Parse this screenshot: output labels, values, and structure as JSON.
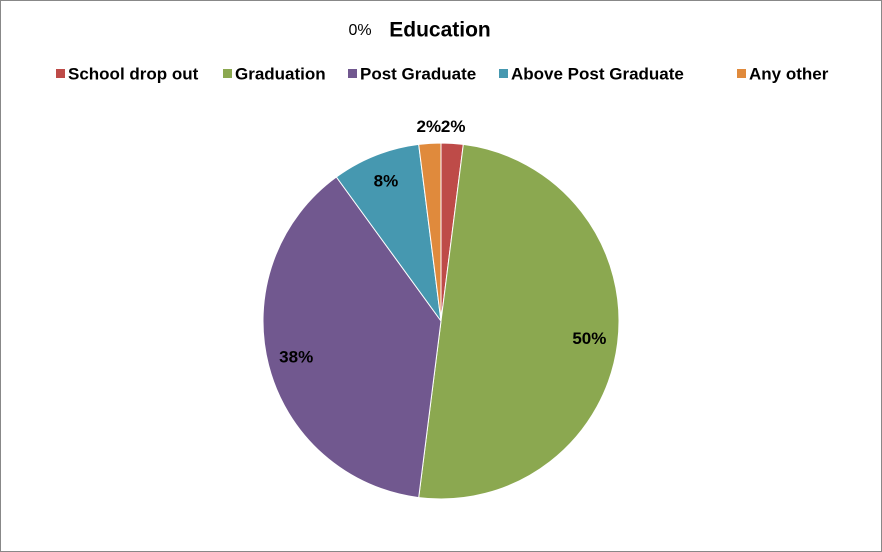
{
  "chart_data": {
    "type": "pie",
    "title": "Education",
    "annotation": "0%",
    "categories": [
      "School drop out",
      "Graduation",
      "Post Graduate",
      "Above Post Graduate",
      "Any other"
    ],
    "values": [
      2,
      50,
      38,
      8,
      2
    ],
    "value_labels": [
      "2%",
      "50%",
      "38%",
      "8%",
      "2%"
    ],
    "colors": [
      "#be4b48",
      "#8ba850",
      "#71588f",
      "#4698b0",
      "#e08a3c"
    ],
    "legend": "top"
  }
}
